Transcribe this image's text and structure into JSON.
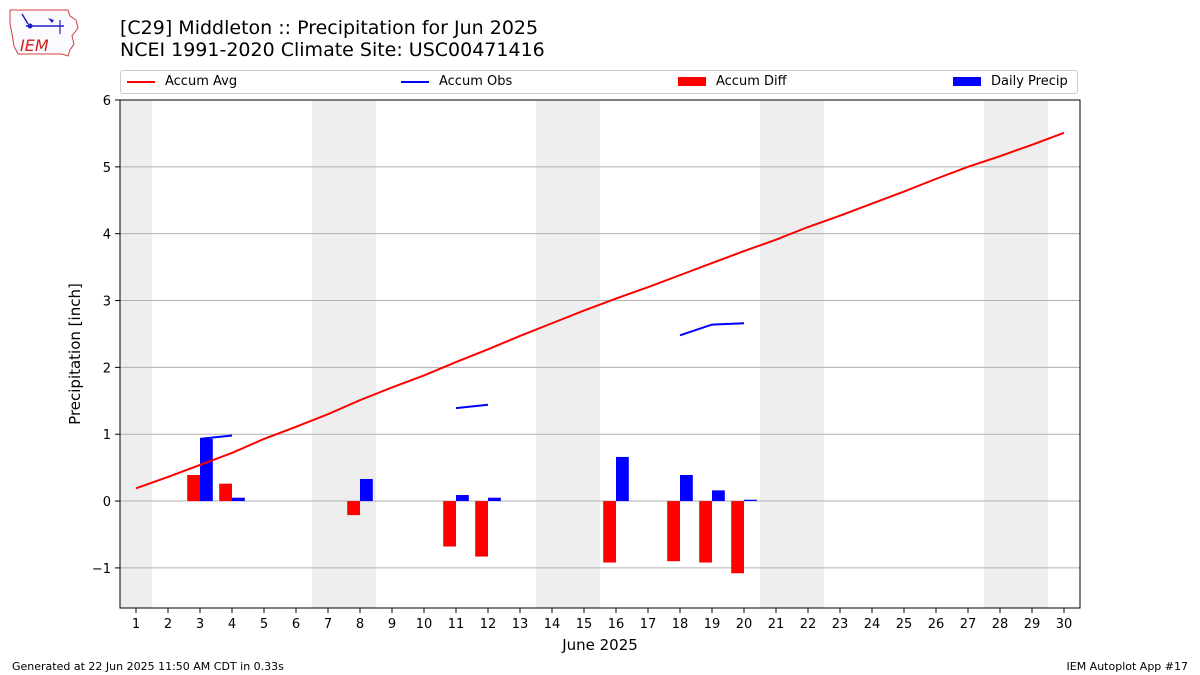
{
  "header": {
    "title_line1": "[C29] Middleton :: Precipitation for Jun 2025",
    "title_line2": "NCEI 1991-2020 Climate Site: USC00471416"
  },
  "logo": {
    "text": "IEM",
    "icon": "iowa-state-outline-icon"
  },
  "footer": {
    "generated": "Generated at 22 Jun 2025 11:50 AM CDT in 0.33s",
    "app": "IEM Autoplot App #17"
  },
  "colors": {
    "avg": "#ff0000",
    "obs": "#0000ff",
    "diff": "#ff0000",
    "daily": "#0000ff",
    "weekend": "#eeeeee",
    "grid": "#b0b0b0"
  },
  "chart_data": {
    "type": "bar",
    "title": "[C29] Middleton :: Precipitation for Jun 2025",
    "xlabel": "June 2025",
    "ylabel": "Precipitation [inch]",
    "xlim": [
      0.5,
      30.5
    ],
    "ylim": [
      -1.6,
      6
    ],
    "yticks": [
      -1,
      0,
      1,
      2,
      3,
      4,
      5,
      6
    ],
    "ytick_labels": [
      "−1",
      "0",
      "1",
      "2",
      "3",
      "4",
      "5",
      "6"
    ],
    "days": [
      1,
      2,
      3,
      4,
      5,
      6,
      7,
      8,
      9,
      10,
      11,
      12,
      13,
      14,
      15,
      16,
      17,
      18,
      19,
      20,
      21,
      22,
      23,
      24,
      25,
      26,
      27,
      28,
      29,
      30
    ],
    "weekend_spans": [
      [
        0.5,
        1.5
      ],
      [
        6.5,
        8.5
      ],
      [
        13.5,
        15.5
      ],
      [
        20.5,
        22.5
      ],
      [
        27.5,
        29.5
      ]
    ],
    "legend": [
      "Accum Avg",
      "Accum Obs",
      "Accum Diff",
      "Daily Precip"
    ],
    "series": [
      {
        "name": "Accum Avg",
        "kind": "line",
        "x": [
          1,
          2,
          3,
          4,
          5,
          6,
          7,
          8,
          9,
          10,
          11,
          12,
          13,
          14,
          15,
          16,
          17,
          18,
          19,
          20,
          21,
          22,
          23,
          24,
          25,
          26,
          27,
          28,
          29,
          30
        ],
        "values": [
          0.19,
          0.36,
          0.54,
          0.72,
          0.93,
          1.11,
          1.3,
          1.51,
          1.7,
          1.88,
          2.08,
          2.27,
          2.47,
          2.66,
          2.85,
          3.03,
          3.2,
          3.38,
          3.56,
          3.74,
          3.91,
          4.1,
          4.27,
          4.45,
          4.63,
          4.82,
          5.0,
          5.16,
          5.33,
          5.51
        ]
      },
      {
        "name": "Accum Obs",
        "kind": "segments",
        "segments": [
          {
            "x": [
              3,
              4
            ],
            "values": [
              0.93,
              0.98
            ]
          },
          {
            "x": [
              11,
              12
            ],
            "values": [
              1.39,
              1.44
            ]
          },
          {
            "x": [
              18,
              19,
              20
            ],
            "values": [
              2.48,
              2.64,
              2.66
            ]
          }
        ]
      },
      {
        "name": "Accum Diff",
        "kind": "bar",
        "x": [
          3,
          4,
          8,
          11,
          12,
          16,
          18,
          19,
          20
        ],
        "values": [
          0.39,
          0.26,
          -0.21,
          -0.68,
          -0.83,
          -0.92,
          -0.9,
          -0.92,
          -1.08
        ]
      },
      {
        "name": "Daily Precip",
        "kind": "bar",
        "x": [
          3,
          4,
          8,
          11,
          12,
          16,
          18,
          19,
          20
        ],
        "values": [
          0.93,
          0.05,
          0.33,
          0.09,
          0.05,
          0.66,
          0.39,
          0.16,
          0.02
        ]
      }
    ]
  }
}
